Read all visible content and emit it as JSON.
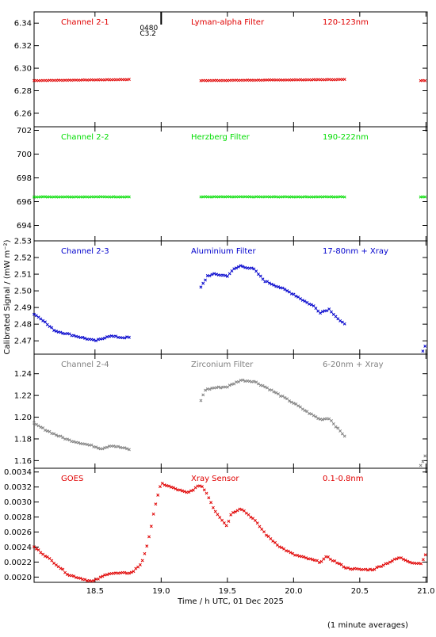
{
  "figure": {
    "xlabel": "Time / h UTC, 01 Dec 2025",
    "ylabel": "Calibrated Signal / (mW m⁻²)",
    "footnote": "(1 minute averages)",
    "xlim": [
      18.04,
      21.01
    ],
    "xticks": [
      "18.5",
      "19.0",
      "19.5",
      "20.0",
      "20.5",
      "21.0"
    ],
    "marker_labels": [
      "0480",
      "C3.2"
    ]
  },
  "chart_data": [
    {
      "type": "scatter",
      "labels": [
        "Channel 2-1",
        "Lyman-alpha Filter",
        "120-123nm"
      ],
      "color": "#e00000",
      "xlim": [
        18.04,
        21.01
      ],
      "ylim": [
        6.248,
        6.35
      ],
      "yticks": [
        "6.26",
        "6.28",
        "6.30",
        "6.32",
        "6.34"
      ],
      "series": [
        {
          "segments": [
            {
              "start": 18.04,
              "end": 18.77,
              "points": [
                [
                  18.04,
                  6.289
                ],
                [
                  18.77,
                  6.29
                ]
              ]
            },
            {
              "start": 19.3,
              "end": 20.4,
              "points": [
                [
                  19.3,
                  6.289
                ],
                [
                  20.4,
                  6.29
                ]
              ]
            },
            {
              "start": 20.96,
              "end": 21.01,
              "points": [
                [
                  20.96,
                  6.289
                ],
                [
                  21.01,
                  6.289
                ]
              ]
            }
          ]
        }
      ]
    },
    {
      "type": "scatter",
      "labels": [
        "Channel 2-2",
        "Herzberg Filter",
        "190-222nm"
      ],
      "color": "#00dd00",
      "xlim": [
        18.04,
        21.01
      ],
      "ylim": [
        692.7,
        702.3
      ],
      "yticks": [
        "694",
        "696",
        "698",
        "700",
        "702"
      ],
      "series": [
        {
          "segments": [
            {
              "start": 18.04,
              "end": 18.77,
              "points": [
                [
                  18.04,
                  696.4
                ],
                [
                  18.77,
                  696.4
                ]
              ]
            },
            {
              "start": 19.3,
              "end": 20.4,
              "points": [
                [
                  19.3,
                  696.4
                ],
                [
                  20.4,
                  696.4
                ]
              ]
            },
            {
              "start": 20.96,
              "end": 21.01,
              "points": [
                [
                  20.96,
                  696.4
                ],
                [
                  21.01,
                  696.4
                ]
              ]
            }
          ]
        }
      ]
    },
    {
      "type": "scatter",
      "labels": [
        "Channel 2-3",
        "Aluminium Filter",
        "17-80nm + Xray"
      ],
      "color": "#0000cc",
      "xlim": [
        18.04,
        21.01
      ],
      "ylim": [
        2.462,
        2.53
      ],
      "yticks": [
        "2.47",
        "2.48",
        "2.49",
        "2.50",
        "2.51",
        "2.52",
        "2.53"
      ],
      "series": [
        {
          "segments": [
            {
              "start": 18.04,
              "end": 18.77,
              "points": [
                [
                  18.04,
                  2.486
                ],
                [
                  18.1,
                  2.483
                ],
                [
                  18.15,
                  2.479
                ],
                [
                  18.2,
                  2.476
                ],
                [
                  18.3,
                  2.474
                ],
                [
                  18.4,
                  2.472
                ],
                [
                  18.5,
                  2.47
                ],
                [
                  18.55,
                  2.471
                ],
                [
                  18.6,
                  2.473
                ],
                [
                  18.7,
                  2.472
                ],
                [
                  18.77,
                  2.472
                ]
              ]
            },
            {
              "start": 19.3,
              "end": 20.4,
              "points": [
                [
                  19.3,
                  2.502
                ],
                [
                  19.35,
                  2.509
                ],
                [
                  19.4,
                  2.51
                ],
                [
                  19.5,
                  2.509
                ],
                [
                  19.55,
                  2.513
                ],
                [
                  19.6,
                  2.515
                ],
                [
                  19.7,
                  2.513
                ],
                [
                  19.78,
                  2.506
                ],
                [
                  19.9,
                  2.502
                ],
                [
                  20.0,
                  2.498
                ],
                [
                  20.1,
                  2.493
                ],
                [
                  20.15,
                  2.491
                ],
                [
                  20.2,
                  2.487
                ],
                [
                  20.27,
                  2.489
                ],
                [
                  20.35,
                  2.482
                ],
                [
                  20.4,
                  2.479
                ]
              ]
            },
            {
              "start": 20.96,
              "end": 21.01,
              "points": [
                [
                  20.96,
                  2.462
                ],
                [
                  20.99,
                  2.466
                ],
                [
                  21.01,
                  2.469
                ]
              ]
            }
          ]
        }
      ]
    },
    {
      "type": "scatter",
      "labels": [
        "Channel 2-4",
        "Zirconium Filter",
        "6-20nm + Xray"
      ],
      "color": "#808080",
      "xlim": [
        18.04,
        21.01
      ],
      "ylim": [
        1.153,
        1.258
      ],
      "yticks": [
        "1.16",
        "1.18",
        "1.20",
        "1.22",
        "1.24"
      ],
      "series": [
        {
          "segments": [
            {
              "start": 18.04,
              "end": 18.77,
              "points": [
                [
                  18.04,
                  1.194
                ],
                [
                  18.1,
                  1.19
                ],
                [
                  18.2,
                  1.184
                ],
                [
                  18.3,
                  1.179
                ],
                [
                  18.4,
                  1.176
                ],
                [
                  18.5,
                  1.173
                ],
                [
                  18.55,
                  1.171
                ],
                [
                  18.62,
                  1.174
                ],
                [
                  18.7,
                  1.172
                ],
                [
                  18.77,
                  1.17
                ]
              ]
            },
            {
              "start": 19.3,
              "end": 20.4,
              "points": [
                [
                  19.3,
                  1.215
                ],
                [
                  19.33,
                  1.225
                ],
                [
                  19.4,
                  1.227
                ],
                [
                  19.5,
                  1.228
                ],
                [
                  19.6,
                  1.234
                ],
                [
                  19.7,
                  1.233
                ],
                [
                  19.8,
                  1.227
                ],
                [
                  19.9,
                  1.22
                ],
                [
                  20.0,
                  1.213
                ],
                [
                  20.1,
                  1.205
                ],
                [
                  20.2,
                  1.198
                ],
                [
                  20.27,
                  1.199
                ],
                [
                  20.33,
                  1.19
                ],
                [
                  20.4,
                  1.181
                ]
              ]
            },
            {
              "start": 20.96,
              "end": 21.01,
              "points": [
                [
                  20.96,
                  1.155
                ],
                [
                  20.99,
                  1.163
                ],
                [
                  21.01,
                  1.169
                ]
              ]
            }
          ]
        }
      ]
    },
    {
      "type": "scatter",
      "labels": [
        "GOES",
        "Xray Sensor",
        "0.1-0.8nm"
      ],
      "color": "#e00000",
      "xlim": [
        18.04,
        21.01
      ],
      "ylim": [
        0.00193,
        0.00345
      ],
      "yticks": [
        "0.0020",
        "0.0022",
        "0.0024",
        "0.0026",
        "0.0028",
        "0.0030",
        "0.0032",
        "0.0034"
      ],
      "series": [
        {
          "segments": [
            {
              "start": 18.04,
              "end": 21.01,
              "points": [
                [
                  18.04,
                  0.0024
                ],
                [
                  18.1,
                  0.00232
                ],
                [
                  18.2,
                  0.00218
                ],
                [
                  18.3,
                  0.00203
                ],
                [
                  18.4,
                  0.00198
                ],
                [
                  18.48,
                  0.00194
                ],
                [
                  18.55,
                  0.002
                ],
                [
                  18.6,
                  0.00205
                ],
                [
                  18.7,
                  0.00205
                ],
                [
                  18.78,
                  0.00206
                ],
                [
                  18.85,
                  0.00218
                ],
                [
                  18.9,
                  0.00245
                ],
                [
                  18.95,
                  0.00292
                ],
                [
                  19.0,
                  0.00325
                ],
                [
                  19.1,
                  0.00318
                ],
                [
                  19.2,
                  0.00312
                ],
                [
                  19.3,
                  0.00323
                ],
                [
                  19.35,
                  0.0031
                ],
                [
                  19.4,
                  0.0029
                ],
                [
                  19.5,
                  0.00267
                ],
                [
                  19.52,
                  0.00283
                ],
                [
                  19.6,
                  0.00292
                ],
                [
                  19.7,
                  0.00277
                ],
                [
                  19.8,
                  0.00255
                ],
                [
                  19.9,
                  0.0024
                ],
                [
                  20.0,
                  0.0023
                ],
                [
                  20.1,
                  0.00225
                ],
                [
                  20.2,
                  0.0022
                ],
                [
                  20.25,
                  0.00227
                ],
                [
                  20.3,
                  0.00222
                ],
                [
                  20.4,
                  0.00212
                ],
                [
                  20.5,
                  0.0021
                ],
                [
                  20.6,
                  0.0021
                ],
                [
                  20.7,
                  0.00218
                ],
                [
                  20.8,
                  0.00226
                ],
                [
                  20.9,
                  0.00219
                ],
                [
                  20.96,
                  0.00218
                ],
                [
                  21.01,
                  0.00233
                ]
              ]
            }
          ]
        }
      ]
    }
  ]
}
